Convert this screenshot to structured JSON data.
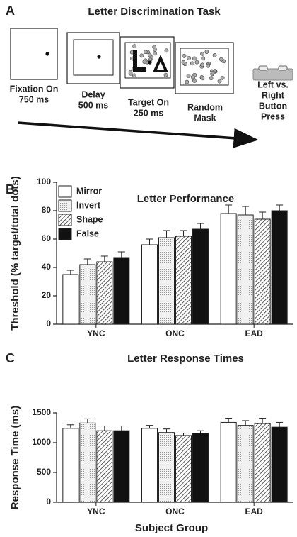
{
  "panel_a": {
    "panel_label": "A",
    "title": "Letter Discrimination Task",
    "steps": [
      {
        "lines": [
          "Fixation On",
          "750 ms"
        ]
      },
      {
        "lines": [
          "Delay",
          "500 ms"
        ]
      },
      {
        "lines": [
          "Target On",
          "250 ms"
        ]
      },
      {
        "lines": [
          "Random",
          "Mask"
        ]
      },
      {
        "lines": [
          "Left vs.",
          "Right",
          "Button",
          "Press"
        ]
      }
    ]
  },
  "chart_data": [
    {
      "type": "bar",
      "panel_label": "B",
      "title": "Letter Performance",
      "y_label": "Threshold (% target/total dots)",
      "categories": [
        "YNC",
        "ONC",
        "EAD"
      ],
      "ylim": [
        0,
        100
      ],
      "yticks": [
        0,
        20,
        40,
        60,
        80,
        100
      ],
      "legend": "top-left",
      "series": [
        {
          "name": "Mirror",
          "color": "#ffffff",
          "values": [
            35,
            56,
            78
          ],
          "errors": [
            3,
            4,
            6
          ]
        },
        {
          "name": "Invert",
          "color": "#eeeeee",
          "pattern": "dotted",
          "values": [
            42,
            61,
            77
          ],
          "errors": [
            4,
            5,
            6
          ]
        },
        {
          "name": "Shape",
          "color": "#ffffff",
          "pattern": "hatched",
          "values": [
            44,
            62,
            74
          ],
          "errors": [
            4,
            4,
            5
          ]
        },
        {
          "name": "False",
          "color": "#111111",
          "values": [
            47,
            67,
            80
          ],
          "errors": [
            4,
            4,
            4
          ]
        }
      ]
    },
    {
      "type": "bar",
      "panel_label": "C",
      "title": "Letter Response Times",
      "y_label": "Response Time (ms)",
      "x_label": "Subject Group",
      "categories": [
        "YNC",
        "ONC",
        "EAD"
      ],
      "ylim": [
        0,
        1500
      ],
      "yticks": [
        0,
        500,
        1000,
        1500
      ],
      "series": [
        {
          "name": "Mirror",
          "color": "#ffffff",
          "values": [
            1240,
            1240,
            1340
          ],
          "errors": [
            60,
            50,
            70
          ]
        },
        {
          "name": "Invert",
          "color": "#eeeeee",
          "pattern": "dotted",
          "values": [
            1330,
            1170,
            1290
          ],
          "errors": [
            70,
            60,
            80
          ]
        },
        {
          "name": "Shape",
          "color": "#ffffff",
          "pattern": "hatched",
          "values": [
            1200,
            1120,
            1320
          ],
          "errors": [
            80,
            40,
            90
          ]
        },
        {
          "name": "False",
          "color": "#111111",
          "values": [
            1200,
            1160,
            1260
          ],
          "errors": [
            80,
            40,
            80
          ]
        }
      ]
    }
  ]
}
